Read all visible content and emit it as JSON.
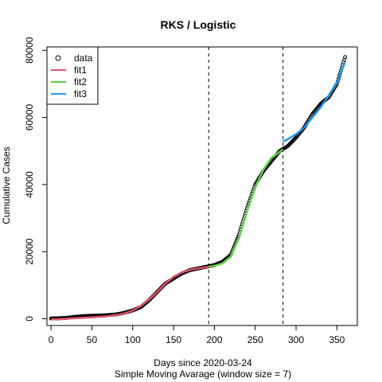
{
  "chart_data": {
    "type": "line",
    "title": "RKS / Logistic",
    "xlabel": "Days since 2020-03-24",
    "xlabel_sub": "Simple Moving Avarage (window size = 7)",
    "ylabel": "Cumulative Cases",
    "xlim": [
      -5,
      375
    ],
    "ylim": [
      -2000,
      81000
    ],
    "x_ticks": [
      0,
      50,
      100,
      150,
      200,
      250,
      300,
      350
    ],
    "y_ticks": [
      0,
      20000,
      40000,
      60000,
      80000
    ],
    "vlines": [
      193,
      284
    ],
    "legend": {
      "position": "top-left",
      "entries": [
        {
          "label": "data",
          "kind": "point",
          "color": "#000000"
        },
        {
          "label": "fit1",
          "kind": "line",
          "color": "#DF536B"
        },
        {
          "label": "fit2",
          "kind": "line",
          "color": "#61D04F"
        },
        {
          "label": "fit3",
          "kind": "line",
          "color": "#2297E6"
        }
      ]
    },
    "data_series": {
      "name": "data",
      "x": [
        0,
        10,
        20,
        30,
        40,
        50,
        60,
        70,
        80,
        90,
        100,
        110,
        120,
        130,
        140,
        150,
        160,
        170,
        180,
        190,
        200,
        210,
        220,
        230,
        240,
        250,
        260,
        270,
        280,
        290,
        300,
        310,
        320,
        330,
        340,
        350,
        360
      ],
      "y": [
        100,
        150,
        300,
        600,
        800,
        900,
        950,
        1100,
        1300,
        1800,
        2500,
        3500,
        5500,
        8000,
        10500,
        12000,
        13500,
        14500,
        15000,
        15500,
        16000,
        17000,
        19000,
        25000,
        33000,
        40000,
        44000,
        47000,
        50000,
        51500,
        54000,
        57000,
        61000,
        64000,
        66000,
        70000,
        78000
      ]
    },
    "series": [
      {
        "name": "fit1",
        "color": "#DF536B",
        "x": [
          0,
          10,
          20,
          30,
          40,
          50,
          60,
          70,
          80,
          90,
          100,
          110,
          120,
          130,
          140,
          150,
          160,
          170,
          180,
          193
        ],
        "y": [
          -200,
          -100,
          50,
          200,
          300,
          450,
          600,
          800,
          1100,
          1600,
          2500,
          3800,
          5700,
          8000,
          10500,
          12500,
          13800,
          14600,
          15000,
          15500
        ]
      },
      {
        "name": "fit2",
        "color": "#61D04F",
        "x": [
          193,
          200,
          210,
          220,
          230,
          240,
          250,
          260,
          270,
          284
        ],
        "y": [
          15500,
          15800,
          16500,
          18500,
          24000,
          32000,
          39000,
          44500,
          48000,
          50500
        ]
      },
      {
        "name": "fit3",
        "color": "#2297E6",
        "x": [
          284,
          290,
          300,
          310,
          320,
          330,
          340,
          350,
          360
        ],
        "y": [
          52800,
          53500,
          55000,
          57000,
          60000,
          63000,
          66500,
          70500,
          76500
        ]
      }
    ]
  }
}
